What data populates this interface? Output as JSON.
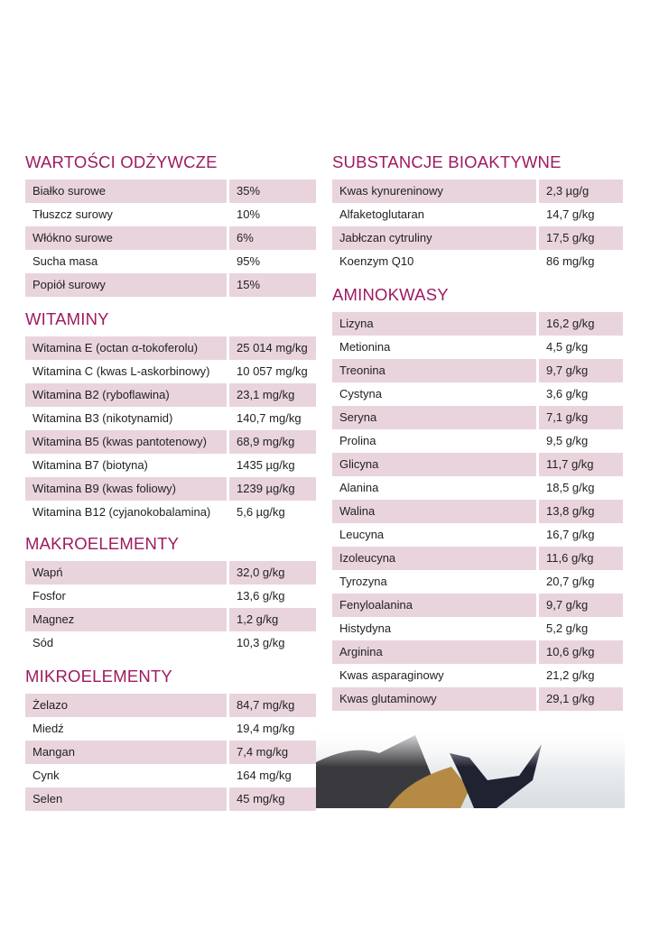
{
  "left": [
    {
      "title": "WARTOŚCI ODŻYWCZE",
      "rows": [
        [
          "Białko surowe",
          "35%"
        ],
        [
          "Tłuszcz surowy",
          "10%"
        ],
        [
          "Włókno surowe",
          "6%"
        ],
        [
          "Sucha masa",
          "95%"
        ],
        [
          "Popiół surowy",
          "15%"
        ]
      ]
    },
    {
      "title": "WITAMINY",
      "rows": [
        [
          "Witamina E (octan α-tokoferolu)",
          "25 014 mg/kg"
        ],
        [
          "Witamina C (kwas L-askorbinowy)",
          "10 057 mg/kg"
        ],
        [
          "Witamina B2 (ryboflawina)",
          "23,1 mg/kg"
        ],
        [
          "Witamina B3 (nikotynamid)",
          "140,7 mg/kg"
        ],
        [
          "Witamina B5 (kwas pantotenowy)",
          "68,9 mg/kg"
        ],
        [
          "Witamina B7 (biotyna)",
          "1435 µg/kg"
        ],
        [
          "Witamina B9 (kwas foliowy)",
          "1239 µg/kg"
        ],
        [
          "Witamina B12 (cyjanokobalamina)",
          "5,6 µg/kg"
        ]
      ]
    },
    {
      "title": "MAKROELEMENTY",
      "rows": [
        [
          "Wapń",
          "32,0 g/kg"
        ],
        [
          "Fosfor",
          "13,6 g/kg"
        ],
        [
          "Magnez",
          "1,2 g/kg"
        ],
        [
          "Sód",
          "10,3 g/kg"
        ]
      ]
    },
    {
      "title": "MIKROELEMENTY",
      "rows": [
        [
          "Żelazo",
          "84,7 mg/kg"
        ],
        [
          "Miedź",
          "19,4 mg/kg"
        ],
        [
          "Mangan",
          "7,4 mg/kg"
        ],
        [
          "Cynk",
          "164 mg/kg"
        ],
        [
          "Selen",
          "45 mg/kg"
        ]
      ]
    }
  ],
  "right": [
    {
      "title": "SUBSTANCJE BIOAKTYWNE",
      "rows": [
        [
          "Kwas kynureninowy",
          "2,3 µg/g"
        ],
        [
          "Alfaketoglutaran",
          "14,7 g/kg"
        ],
        [
          "Jabłczan cytruliny",
          "17,5 g/kg"
        ],
        [
          "Koenzym Q10",
          "86 mg/kg"
        ]
      ]
    },
    {
      "title": "AMINOKWASY",
      "rows": [
        [
          "Lizyna",
          "16,2 g/kg"
        ],
        [
          "Metionina",
          "4,5 g/kg"
        ],
        [
          "Treonina",
          "9,7 g/kg"
        ],
        [
          "Cystyna",
          "3,6 g/kg"
        ],
        [
          "Seryna",
          "7,1 g/kg"
        ],
        [
          "Prolina",
          "9,5 g/kg"
        ],
        [
          "Glicyna",
          "11,7 g/kg"
        ],
        [
          "Alanina",
          "18,5 g/kg"
        ],
        [
          "Walina",
          "13,8 g/kg"
        ],
        [
          "Leucyna",
          "16,7 g/kg"
        ],
        [
          "Izoleucyna",
          "11,6 g/kg"
        ],
        [
          "Tyrozyna",
          "20,7 g/kg"
        ],
        [
          "Fenyloalanina",
          "9,7 g/kg"
        ],
        [
          "Histydyna",
          "5,2 g/kg"
        ],
        [
          "Arginina",
          "10,6 g/kg"
        ],
        [
          "Kwas asparaginowy",
          "21,2 g/kg"
        ],
        [
          "Kwas glutaminowy",
          "29,1 g/kg"
        ]
      ]
    }
  ],
  "colors": {
    "heading": "#9e1a60",
    "row_shade": "#e9d4dd"
  }
}
